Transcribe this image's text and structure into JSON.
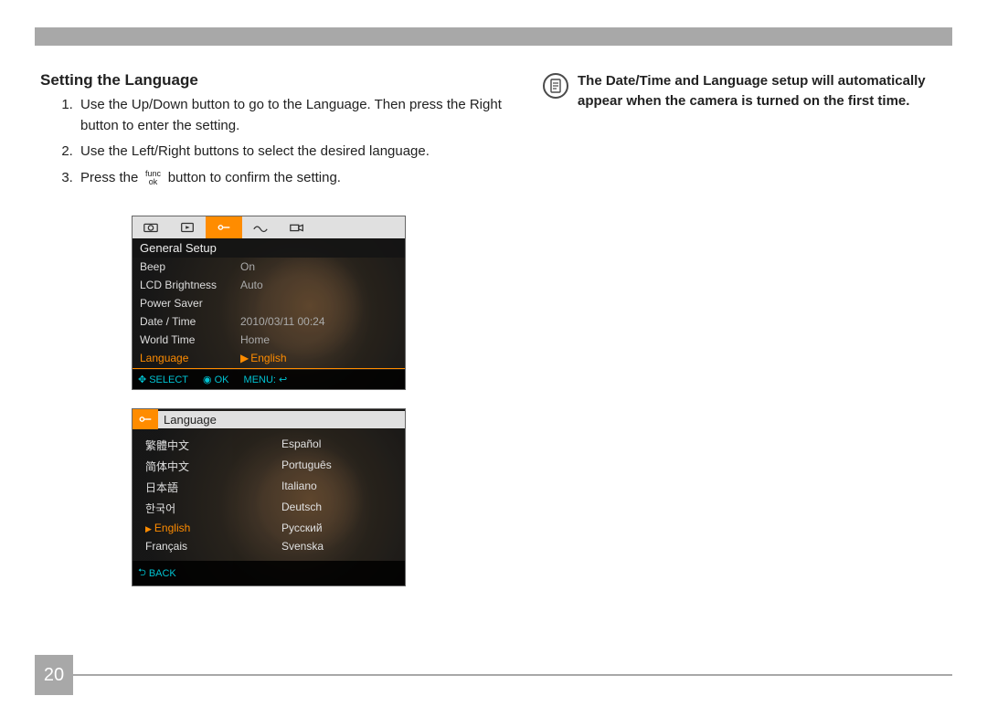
{
  "heading": "Setting the Language",
  "steps": [
    "Use the Up/Down button to go to the Language. Then press the Right button to enter the setting.",
    "Use the Left/Right buttons to select the desired language.",
    "Press the  button to confirm the setting."
  ],
  "func_label_top": "func",
  "func_label_bottom": "ok",
  "note": "The Date/Time and Language setup will automatically appear when the camera is turned on the first time.",
  "pageNumber": "20",
  "screen1": {
    "sectionTitle": "General Setup",
    "rows": [
      {
        "k": "Beep",
        "v": "On",
        "sel": false
      },
      {
        "k": "LCD Brightness",
        "v": "Auto",
        "sel": false
      },
      {
        "k": "Power Saver",
        "v": "",
        "sel": false
      },
      {
        "k": "Date / Time",
        "v": "2010/03/11 00:24",
        "sel": false
      },
      {
        "k": "World Time",
        "v": "Home",
        "sel": false
      },
      {
        "k": "Language",
        "v": "English",
        "sel": true
      }
    ],
    "footer": {
      "select": "SELECT",
      "ok": "OK",
      "menu": "MENU:"
    }
  },
  "screen2": {
    "title": "Language",
    "left": [
      "繁體中文",
      "简体中文",
      "日本語",
      "한국어",
      "English",
      "Français"
    ],
    "right": [
      "Español",
      "Português",
      "Italiano",
      "Deutsch",
      "Русский",
      "Svenska"
    ],
    "selected": "English",
    "back": "BACK"
  },
  "colors": {
    "accent": "#ff8c00",
    "cyan": "#00c2d1",
    "grayBar": "#a8a8a8",
    "screenBg": "#1a1a1a"
  }
}
